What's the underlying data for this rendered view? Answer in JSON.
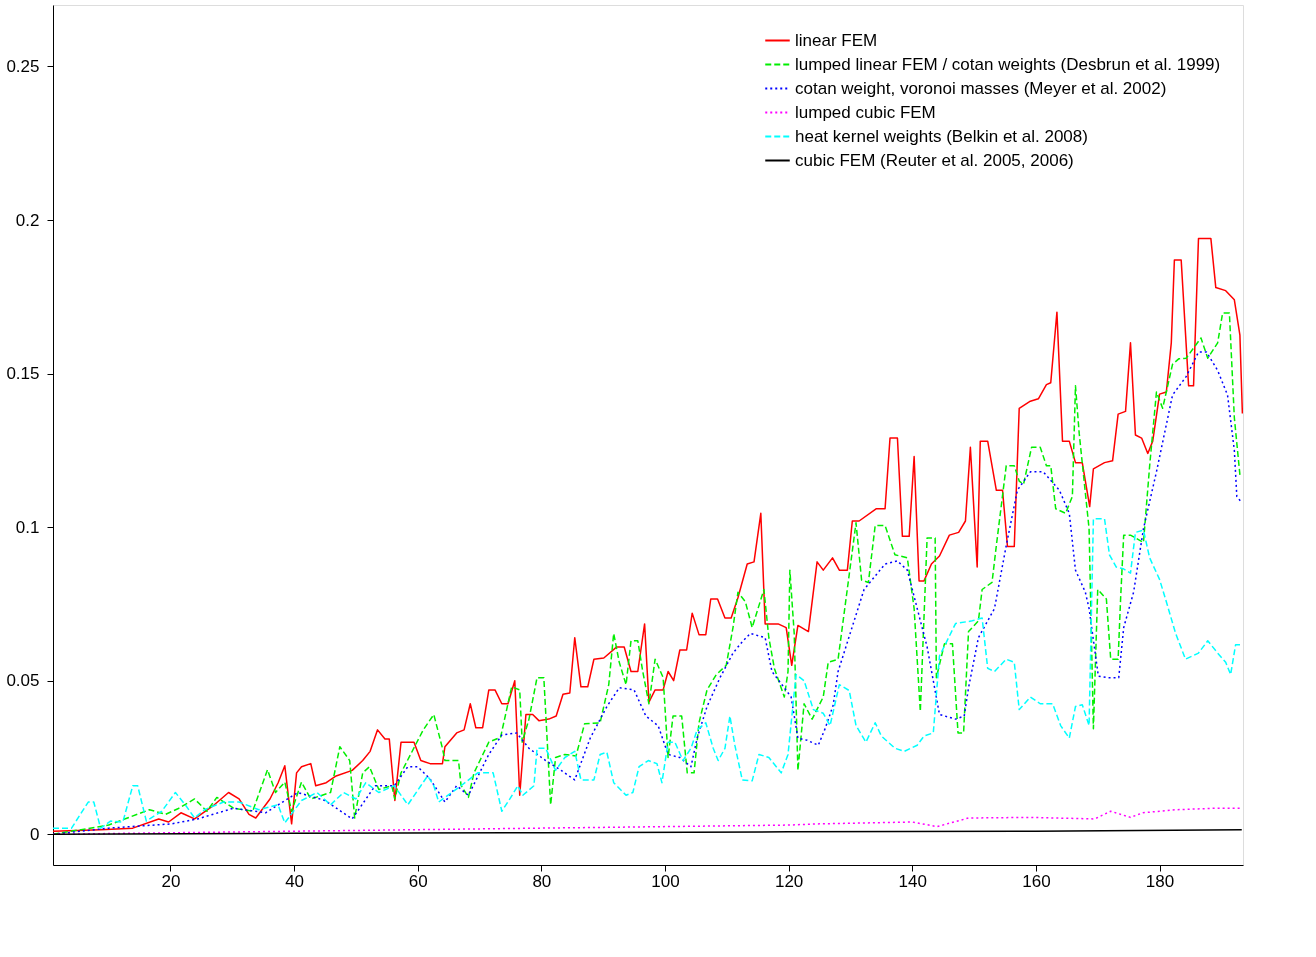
{
  "chart_data": {
    "type": "line",
    "xlim": [
      1,
      193.5
    ],
    "ylim": [
      -0.01,
      0.27
    ],
    "xticks": [
      20,
      40,
      60,
      80,
      100,
      120,
      140,
      160,
      180
    ],
    "yticks": [
      0,
      0.05,
      0.1,
      0.15,
      0.2,
      0.25
    ],
    "grid": false,
    "legend": "top right",
    "marker": "none",
    "series": [
      {
        "name": "linear FEM",
        "color": "#ff0000",
        "line_style": "solid",
        "x": [
          1,
          8.7,
          13.9,
          18.1,
          19.7,
          21.7,
          23.9,
          27.1,
          29.4,
          31.1,
          32.7,
          33.8,
          36.1,
          37.4,
          38.5,
          39.6,
          40.4,
          41.2,
          42.7,
          43.5,
          45.2,
          46.8,
          49.4,
          51.1,
          52.3,
          53.5,
          54.7,
          55.4,
          56.3,
          57.3,
          59.4,
          60.5,
          62,
          64,
          64.4,
          66.3,
          67.5,
          68.5,
          69.4,
          70.5,
          71.5,
          72.5,
          73.6,
          74.6,
          75.7,
          76.5,
          77.5,
          78.6,
          79.6,
          81.2,
          82.4,
          83.5,
          84.6,
          85.4,
          86.4,
          87.5,
          88.5,
          90.1,
          92.2,
          93.4,
          94.5,
          95.6,
          96.7,
          97.4,
          98.4,
          99.7,
          100.5,
          101.4,
          102.4,
          103.5,
          104.4,
          105.5,
          106.6,
          107.4,
          108.5,
          109.7,
          110.7,
          111.8,
          113.3,
          114.4,
          115.5,
          116.2,
          118.3,
          119.6,
          120.5,
          121.5,
          123.2,
          124.6,
          125.6,
          127.1,
          128.2,
          129.5,
          130.3,
          131.4,
          134.2,
          135.6,
          136.4,
          137.6,
          138.4,
          139.5,
          140.3,
          141.1,
          141.9,
          143.1,
          144.4,
          146,
          147.5,
          148.6,
          149.4,
          150.5,
          151,
          152.2,
          153.6,
          154.6,
          155.4,
          156.5,
          157.3,
          159.1,
          160.4,
          161.7,
          162.4,
          163.4,
          164.3,
          165.4,
          166.4,
          167.5,
          168.7,
          169.3,
          171.1,
          172.4,
          173.3,
          174.5,
          175.3,
          176.1,
          177.1,
          178.1,
          178.9,
          180,
          181.1,
          181.9,
          182.4,
          183.5,
          184.7,
          185.5,
          186.3,
          188.3,
          189.1,
          190.7,
          192.1,
          193,
          193.4
        ],
        "values": [
          0.001,
          0.0015,
          0.002,
          0.005,
          0.004,
          0.007,
          0.005,
          0.0096,
          0.0136,
          0.0115,
          0.0065,
          0.0053,
          0.0115,
          0.0167,
          0.0223,
          0.0034,
          0.02,
          0.022,
          0.023,
          0.0158,
          0.0168,
          0.019,
          0.0208,
          0.024,
          0.027,
          0.034,
          0.031,
          0.031,
          0.011,
          0.03,
          0.03,
          0.024,
          0.023,
          0.023,
          0.0285,
          0.033,
          0.034,
          0.0425,
          0.0347,
          0.0347,
          0.047,
          0.047,
          0.0425,
          0.0425,
          0.05,
          0.0127,
          0.039,
          0.039,
          0.037,
          0.0375,
          0.0385,
          0.0456,
          0.046,
          0.064,
          0.048,
          0.048,
          0.057,
          0.0574,
          0.061,
          0.061,
          0.053,
          0.053,
          0.0685,
          0.043,
          0.047,
          0.047,
          0.053,
          0.05,
          0.06,
          0.06,
          0.072,
          0.065,
          0.065,
          0.0766,
          0.0766,
          0.0704,
          0.0704,
          0.077,
          0.088,
          0.0887,
          0.1045,
          0.0685,
          0.0685,
          0.0673,
          0.055,
          0.068,
          0.066,
          0.0887,
          0.086,
          0.09,
          0.086,
          0.086,
          0.102,
          0.102,
          0.106,
          0.106,
          0.129,
          0.129,
          0.097,
          0.097,
          0.123,
          0.0825,
          0.0825,
          0.088,
          0.0906,
          0.0974,
          0.0983,
          0.102,
          0.126,
          0.087,
          0.128,
          0.128,
          0.112,
          0.112,
          0.0937,
          0.0937,
          0.1387,
          0.141,
          0.1418,
          0.1464,
          0.147,
          0.17,
          0.128,
          0.128,
          0.121,
          0.121,
          0.1067,
          0.119,
          0.121,
          0.1216,
          0.1368,
          0.1377,
          0.16,
          0.13,
          0.129,
          0.124,
          0.128,
          0.1433,
          0.144,
          0.16,
          0.187,
          0.187,
          0.146,
          0.146,
          0.194,
          0.194,
          0.178,
          0.177,
          0.174,
          0.1625,
          0.137
        ]
      },
      {
        "name": "lumped linear FEM / cotan weights (Desbrun et al. 1999)",
        "color": "#00ee00",
        "line_style": "dashed",
        "x": [
          1,
          10,
          16.6,
          19.2,
          21.2,
          23.9,
          25.9,
          27.5,
          30.2,
          33.3,
          35.7,
          37,
          38.5,
          39.6,
          41.2,
          42.7,
          45.9,
          47.4,
          49,
          49.8,
          51.1,
          52.2,
          53.7,
          55.8,
          56.3,
          57.3,
          60.9,
          62.6,
          64,
          64.4,
          66.6,
          67,
          68.2,
          69.1,
          71.5,
          73.4,
          75.2,
          76.5,
          76.9,
          78,
          79.3,
          80.4,
          81.5,
          82.3,
          83.8,
          85.6,
          87,
          89.5,
          90.9,
          91.7,
          92.6,
          93.7,
          94.5,
          95.6,
          96.4,
          97.4,
          98.4,
          99.7,
          100.5,
          101.3,
          102.7,
          103.6,
          104.7,
          105.5,
          106.8,
          108.3,
          109.9,
          111,
          111.8,
          113,
          114.1,
          116,
          116.8,
          117.7,
          119.3,
          119.9,
          120.2,
          120.9,
          121.5,
          122.5,
          123.8,
          125.6,
          126.4,
          128,
          130.9,
          131.8,
          132.9,
          134,
          135.6,
          137.2,
          139.2,
          140.3,
          141.3,
          142.4,
          143.7,
          143.9,
          145.2,
          146.5,
          147.4,
          148.3,
          149.1,
          150.7,
          151.3,
          152.9,
          153.6,
          155.2,
          156.5,
          157.3,
          158,
          159.3,
          160.7,
          161.7,
          162.4,
          163.2,
          164.8,
          165.9,
          166.4,
          167,
          167.8,
          168.6,
          169.3,
          170,
          171.4,
          172.1,
          173.3,
          173.7,
          174.2,
          175.3,
          177.4,
          178.4,
          179.5,
          180.5,
          182.1,
          183.1,
          184.3,
          185.9,
          186.7,
          187.8,
          189.4,
          190.2,
          191.3,
          192.1,
          193
        ],
        "values": [
          0,
          0.003,
          0.008,
          0.0065,
          0.0083,
          0.0115,
          0.0075,
          0.012,
          0.0085,
          0.0075,
          0.021,
          0.0136,
          0.017,
          0.0075,
          0.017,
          0.0115,
          0.0136,
          0.0285,
          0.024,
          0.0053,
          0.02,
          0.022,
          0.0146,
          0.0158,
          0.0115,
          0.02,
          0.034,
          0.039,
          0.028,
          0.024,
          0.024,
          0.016,
          0.012,
          0.02,
          0.03,
          0.0316,
          0.048,
          0.047,
          0.03,
          0.0375,
          0.051,
          0.051,
          0.0096,
          0.025,
          0.026,
          0.0255,
          0.036,
          0.0363,
          0.0487,
          0.0654,
          0.056,
          0.0487,
          0.063,
          0.063,
          0.053,
          0.0425,
          0.057,
          0.051,
          0.025,
          0.0385,
          0.0385,
          0.02,
          0.02,
          0.0363,
          0.047,
          0.052,
          0.055,
          0.0673,
          0.0788,
          0.0757,
          0.0673,
          0.0797,
          0.064,
          0.054,
          0.0447,
          0.053,
          0.086,
          0.0654,
          0.0208,
          0.0425,
          0.0375,
          0.0447,
          0.056,
          0.057,
          0.1014,
          0.0828,
          0.082,
          0.1005,
          0.1005,
          0.091,
          0.09,
          0.0735,
          0.04,
          0.0965,
          0.0965,
          0.051,
          0.062,
          0.062,
          0.033,
          0.033,
          0.066,
          0.0695,
          0.0797,
          0.082,
          0.094,
          0.12,
          0.12,
          0.115,
          0.114,
          0.126,
          0.126,
          0.12,
          0.12,
          0.106,
          0.1045,
          0.11,
          0.146,
          0.1306,
          0.115,
          0.0995,
          0.0344,
          0.0797,
          0.0766,
          0.057,
          0.057,
          0.0766,
          0.0974,
          0.0974,
          0.095,
          0.12,
          0.144,
          0.1387,
          0.153,
          0.1548,
          0.155,
          0.1594,
          0.1616,
          0.155,
          0.16,
          0.1697,
          0.1697,
          0.1356,
          0.117
        ]
      },
      {
        "name": "cotan weight, voronoi masses (Meyer et al. 2002)",
        "color": "#0000ff",
        "line_style": "dotted",
        "x": [
          1,
          10,
          20.2,
          24.4,
          30.2,
          35.4,
          40.6,
          45,
          49.4,
          53.1,
          56.2,
          58.4,
          60,
          62,
          64.4,
          66.3,
          68.2,
          71.5,
          73.6,
          76,
          78,
          80.7,
          83.2,
          85.4,
          87.9,
          90.6,
          92.6,
          95,
          96.9,
          98.9,
          100.5,
          102.4,
          104.2,
          105.2,
          106.8,
          108.9,
          111,
          112.5,
          113.8,
          116.2,
          117.3,
          119.3,
          120.4,
          121.5,
          123,
          124.8,
          125.9,
          127.2,
          128,
          132.2,
          135.6,
          137.6,
          139.2,
          142.4,
          144.4,
          147,
          148.4,
          149.1,
          150.7,
          153.3,
          155.2,
          157,
          159.1,
          161.2,
          163.8,
          165.4,
          166.4,
          168,
          168.6,
          170.1,
          171.7,
          173.4,
          174.2,
          175.8,
          177.4,
          179.5,
          182.1,
          184.3,
          186.3,
          187.6,
          189.4,
          191,
          192.1,
          192.5,
          193.3
        ],
        "values": [
          0,
          0.002,
          0.0034,
          0.005,
          0.0085,
          0.007,
          0.0136,
          0.011,
          0.005,
          0.0158,
          0.0158,
          0.022,
          0.022,
          0.018,
          0.0105,
          0.0158,
          0.0127,
          0.026,
          0.0323,
          0.033,
          0.028,
          0.024,
          0.0208,
          0.0177,
          0.0313,
          0.0416,
          0.0477,
          0.047,
          0.0385,
          0.0353,
          0.026,
          0.025,
          0.022,
          0.0313,
          0.0416,
          0.051,
          0.059,
          0.0627,
          0.0654,
          0.064,
          0.053,
          0.0477,
          0.0447,
          0.0313,
          0.0306,
          0.029,
          0.0344,
          0.042,
          0.053,
          0.0797,
          0.088,
          0.089,
          0.086,
          0.061,
          0.039,
          0.0375,
          0.0385,
          0.0477,
          0.064,
          0.0735,
          0.094,
          0.112,
          0.118,
          0.118,
          0.112,
          0.1045,
          0.086,
          0.0788,
          0.0735,
          0.0515,
          0.051,
          0.051,
          0.0673,
          0.0788,
          0.0995,
          0.118,
          0.143,
          0.149,
          0.157,
          0.157,
          0.151,
          0.143,
          0.125,
          0.11,
          0.108
        ]
      },
      {
        "name": "lumped cubic FEM",
        "color": "#ff00ff",
        "line_style": "dotted",
        "x": [
          1,
          20,
          40,
          60,
          80,
          100,
          120,
          125,
          140,
          144,
          149.1,
          159.1,
          169.5,
          172.1,
          175.3,
          177.3,
          182.6,
          189.4,
          193.3
        ],
        "values": [
          0,
          0.0005,
          0.001,
          0.0015,
          0.002,
          0.0025,
          0.003,
          0.0034,
          0.004,
          0.0025,
          0.0053,
          0.0055,
          0.005,
          0.0075,
          0.0055,
          0.007,
          0.008,
          0.0085,
          0.0085
        ]
      },
      {
        "name": "heat kernel weights (Belkin et al. 2008)",
        "color": "#00ffff",
        "line_style": "dashed",
        "x": [
          1,
          4,
          6.7,
          7.6,
          8.7,
          10.3,
          12.3,
          13.9,
          14.7,
          16.1,
          18.6,
          20.8,
          22.4,
          23.9,
          25.5,
          28.6,
          31.1,
          34.3,
          37.4,
          38.5,
          41.2,
          43.7,
          45.9,
          48,
          50,
          51.6,
          53.7,
          56.2,
          58.4,
          60.5,
          61.6,
          62.6,
          63.4,
          67,
          69.7,
          72.2,
          73.6,
          74.9,
          76.2,
          77,
          78.8,
          79.3,
          80.7,
          82.3,
          83.8,
          85.4,
          86.4,
          88.5,
          89.5,
          90.6,
          91.7,
          93.7,
          94.8,
          95.8,
          97.3,
          98.7,
          99.5,
          100.5,
          101.6,
          102.9,
          104.2,
          105.2,
          106.6,
          107.8,
          108.6,
          109.7,
          110.5,
          111.3,
          112.5,
          114.1,
          115.2,
          116.8,
          118.8,
          119.9,
          121.2,
          122.5,
          124,
          125.6,
          126.7,
          128.2,
          129.8,
          130.9,
          132.5,
          134,
          135,
          137.2,
          138.7,
          140.8,
          141.9,
          143.4,
          144.4,
          147,
          149.7,
          151.3,
          152.2,
          153.3,
          155.2,
          156.5,
          157.3,
          159.1,
          160.7,
          162.7,
          164,
          165.4,
          166.4,
          167.5,
          168.6,
          169.3,
          171.1,
          171.9,
          173,
          174.1,
          175.3,
          176.1,
          177.4,
          178.4,
          180,
          181.1,
          182.6,
          184.2,
          186.3,
          187.8,
          189.4,
          190.7,
          191.5,
          192.3,
          193.3
        ],
        "values": [
          0.002,
          0.002,
          0.0105,
          0.0105,
          0.002,
          0.0043,
          0.004,
          0.0158,
          0.0158,
          0.0043,
          0.0075,
          0.0136,
          0.0096,
          0.0053,
          0.008,
          0.0105,
          0.0105,
          0.008,
          0.0096,
          0.0037,
          0.011,
          0.0136,
          0.0096,
          0.0136,
          0.0115,
          0.0168,
          0.0136,
          0.0158,
          0.0096,
          0.0158,
          0.019,
          0.0158,
          0.0105,
          0.0158,
          0.02,
          0.02,
          0.0075,
          0.0115,
          0.0158,
          0.0127,
          0.0158,
          0.028,
          0.028,
          0.0208,
          0.025,
          0.027,
          0.0177,
          0.0177,
          0.026,
          0.0267,
          0.0168,
          0.0127,
          0.0136,
          0.022,
          0.024,
          0.023,
          0.0168,
          0.03,
          0.03,
          0.024,
          0.028,
          0.034,
          0.0363,
          0.028,
          0.024,
          0.028,
          0.0385,
          0.029,
          0.0177,
          0.0174,
          0.026,
          0.025,
          0.02,
          0.026,
          0.052,
          0.05,
          0.0406,
          0.0394,
          0.0354,
          0.0487,
          0.0468,
          0.0354,
          0.03,
          0.0363,
          0.032,
          0.028,
          0.027,
          0.029,
          0.032,
          0.033,
          0.058,
          0.0686,
          0.0695,
          0.0704,
          0.054,
          0.053,
          0.057,
          0.056,
          0.0406,
          0.0447,
          0.0425,
          0.0425,
          0.0354,
          0.0313,
          0.0416,
          0.0422,
          0.0354,
          0.1027,
          0.1027,
          0.091,
          0.087,
          0.0865,
          0.085,
          0.0983,
          0.099,
          0.09,
          0.083,
          0.0757,
          0.0654,
          0.057,
          0.059,
          0.063,
          0.059,
          0.056,
          0.052,
          0.0617,
          0.0617
        ]
      },
      {
        "name": "cubic FEM (Reuter et al. 2005, 2006)",
        "color": "#000000",
        "line_style": "solid",
        "x": [
          1,
          40,
          80,
          120,
          160,
          193.3
        ],
        "values": [
          0,
          0.0003,
          0.0005,
          0.0008,
          0.001,
          0.0015
        ]
      }
    ]
  }
}
